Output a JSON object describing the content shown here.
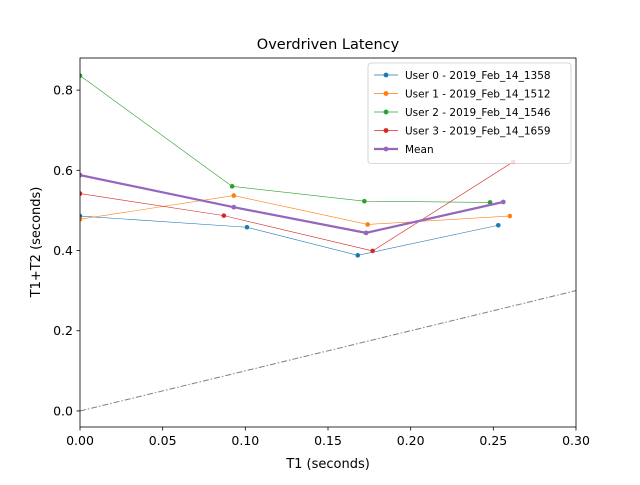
{
  "chart_data": {
    "type": "line",
    "title": "Overdriven Latency",
    "xlabel": "T1 (seconds)",
    "ylabel": "T1+T2 (seconds)",
    "xlim": [
      0.0,
      0.3
    ],
    "ylim": [
      -0.04,
      0.88
    ],
    "xticks": [
      0.0,
      0.05,
      0.1,
      0.15,
      0.2,
      0.25,
      0.3
    ],
    "xtick_labels": [
      "0.00",
      "0.05",
      "0.10",
      "0.15",
      "0.20",
      "0.25",
      "0.30"
    ],
    "yticks": [
      0.0,
      0.2,
      0.4,
      0.6,
      0.8
    ],
    "ytick_labels": [
      "0.0",
      "0.2",
      "0.4",
      "0.6",
      "0.8"
    ],
    "grid": false,
    "legend_position": "top-right",
    "reference_line": {
      "x": [
        0.0,
        0.3
      ],
      "y": [
        0.0,
        0.3
      ],
      "style": "dash-dot",
      "color": "#808080"
    },
    "series": [
      {
        "name": "User 0 - 2019_Feb_14_1358",
        "color": "#1f77b4",
        "x": [
          0.0,
          0.101,
          0.168,
          0.253
        ],
        "y": [
          0.486,
          0.458,
          0.388,
          0.463
        ]
      },
      {
        "name": "User 1 - 2019_Feb_14_1512",
        "color": "#ff7f0e",
        "x": [
          0.0,
          0.093,
          0.174,
          0.26
        ],
        "y": [
          0.478,
          0.537,
          0.465,
          0.486
        ]
      },
      {
        "name": "User 2 - 2019_Feb_14_1546",
        "color": "#2ca02c",
        "x": [
          0.0,
          0.092,
          0.172,
          0.248
        ],
        "y": [
          0.836,
          0.56,
          0.523,
          0.52
        ]
      },
      {
        "name": "User 3 - 2019_Feb_14_1659",
        "color": "#d62728",
        "x": [
          0.0,
          0.087,
          0.177,
          0.262
        ],
        "y": [
          0.542,
          0.487,
          0.399,
          0.621
        ]
      },
      {
        "name": "Mean",
        "color": "#9467bd",
        "x": [
          0.0,
          0.093,
          0.173,
          0.256
        ],
        "y": [
          0.588,
          0.508,
          0.444,
          0.521
        ],
        "bold": true
      }
    ]
  }
}
